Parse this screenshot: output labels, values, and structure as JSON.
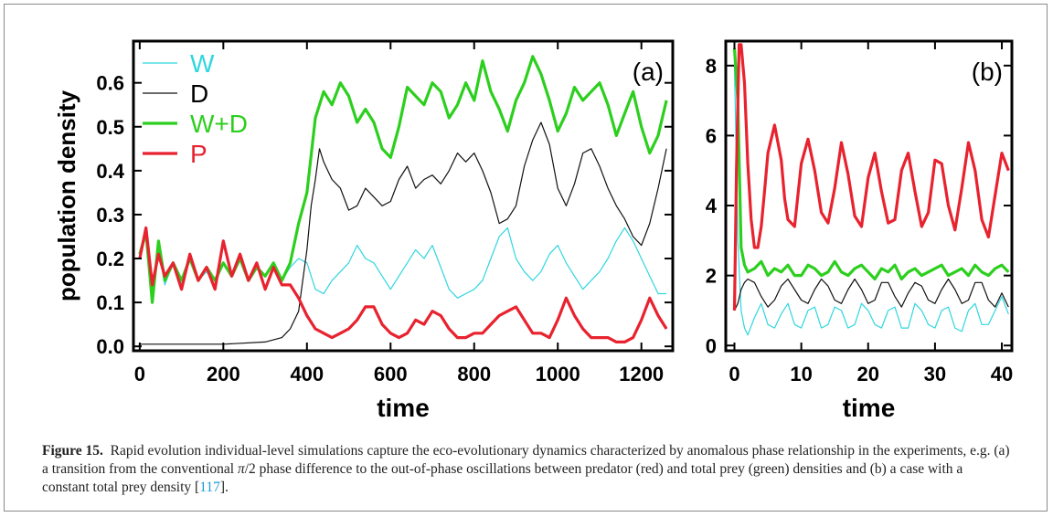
{
  "chart_data": [
    {
      "type": "line",
      "panel_label": "(a)",
      "xlabel": "time",
      "ylabel": "population density",
      "xlim": [
        -15,
        1275
      ],
      "ylim": [
        -0.01,
        0.695
      ],
      "xticks": [
        0,
        200,
        400,
        600,
        800,
        1000,
        1200
      ],
      "yticks": [
        0.0,
        0.1,
        0.2,
        0.3,
        0.4,
        0.5,
        0.6
      ],
      "ytick_labels": [
        "0.0",
        "0.1",
        "0.2",
        "0.3",
        "0.4",
        "0.5",
        "0.6"
      ],
      "legend_position": "top-left",
      "series": [
        {
          "name": "W",
          "color": "#2fd6df",
          "width": 1.2,
          "x": [
            0,
            15,
            30,
            45,
            60,
            80,
            100,
            120,
            140,
            160,
            180,
            200,
            220,
            240,
            260,
            280,
            300,
            320,
            340,
            360,
            380,
            400,
            420,
            440,
            460,
            480,
            500,
            520,
            540,
            560,
            580,
            600,
            620,
            640,
            660,
            680,
            700,
            720,
            740,
            760,
            780,
            800,
            820,
            840,
            860,
            880,
            900,
            920,
            940,
            960,
            980,
            1000,
            1020,
            1040,
            1060,
            1080,
            1100,
            1120,
            1140,
            1160,
            1180,
            1200,
            1220,
            1240,
            1260
          ],
          "y": [
            0.21,
            0.25,
            0.11,
            0.23,
            0.14,
            0.19,
            0.14,
            0.2,
            0.15,
            0.17,
            0.14,
            0.19,
            0.16,
            0.2,
            0.15,
            0.18,
            0.16,
            0.19,
            0.15,
            0.18,
            0.2,
            0.19,
            0.13,
            0.12,
            0.15,
            0.17,
            0.19,
            0.23,
            0.2,
            0.19,
            0.16,
            0.13,
            0.16,
            0.19,
            0.22,
            0.2,
            0.23,
            0.18,
            0.13,
            0.11,
            0.12,
            0.13,
            0.15,
            0.2,
            0.25,
            0.27,
            0.2,
            0.17,
            0.15,
            0.17,
            0.21,
            0.23,
            0.19,
            0.16,
            0.13,
            0.15,
            0.17,
            0.2,
            0.24,
            0.27,
            0.24,
            0.2,
            0.16,
            0.12,
            0.12
          ]
        },
        {
          "name": "D",
          "color": "#111111",
          "width": 1.2,
          "x": [
            0,
            100,
            200,
            300,
            340,
            360,
            380,
            390,
            400,
            410,
            420,
            430,
            440,
            460,
            480,
            500,
            520,
            540,
            560,
            580,
            600,
            620,
            640,
            660,
            680,
            700,
            720,
            740,
            760,
            780,
            800,
            820,
            840,
            860,
            880,
            900,
            920,
            940,
            960,
            980,
            1000,
            1020,
            1040,
            1060,
            1080,
            1100,
            1120,
            1140,
            1160,
            1180,
            1200,
            1220,
            1240,
            1260
          ],
          "y": [
            0.005,
            0.005,
            0.005,
            0.01,
            0.02,
            0.04,
            0.08,
            0.15,
            0.22,
            0.32,
            0.38,
            0.45,
            0.42,
            0.38,
            0.36,
            0.31,
            0.32,
            0.36,
            0.34,
            0.32,
            0.33,
            0.38,
            0.41,
            0.36,
            0.38,
            0.39,
            0.37,
            0.4,
            0.44,
            0.42,
            0.44,
            0.4,
            0.35,
            0.28,
            0.29,
            0.32,
            0.41,
            0.47,
            0.51,
            0.46,
            0.36,
            0.32,
            0.37,
            0.44,
            0.45,
            0.41,
            0.36,
            0.32,
            0.29,
            0.25,
            0.23,
            0.28,
            0.36,
            0.45
          ]
        },
        {
          "name": "W+D",
          "color": "#2ccf1e",
          "width": 3.2,
          "x": [
            0,
            15,
            30,
            45,
            60,
            80,
            100,
            120,
            140,
            160,
            180,
            200,
            220,
            240,
            260,
            280,
            300,
            320,
            340,
            360,
            380,
            400,
            420,
            440,
            460,
            480,
            500,
            520,
            540,
            560,
            580,
            600,
            620,
            640,
            660,
            680,
            700,
            720,
            740,
            760,
            780,
            800,
            820,
            840,
            860,
            880,
            900,
            920,
            940,
            960,
            980,
            1000,
            1020,
            1040,
            1060,
            1080,
            1100,
            1120,
            1140,
            1160,
            1180,
            1200,
            1220,
            1240,
            1260
          ],
          "y": [
            0.21,
            0.26,
            0.1,
            0.24,
            0.15,
            0.19,
            0.15,
            0.2,
            0.15,
            0.18,
            0.15,
            0.19,
            0.16,
            0.2,
            0.15,
            0.18,
            0.16,
            0.19,
            0.15,
            0.19,
            0.28,
            0.35,
            0.52,
            0.58,
            0.55,
            0.6,
            0.57,
            0.51,
            0.54,
            0.51,
            0.45,
            0.43,
            0.5,
            0.59,
            0.57,
            0.55,
            0.6,
            0.58,
            0.52,
            0.55,
            0.6,
            0.56,
            0.65,
            0.58,
            0.54,
            0.49,
            0.56,
            0.6,
            0.66,
            0.62,
            0.56,
            0.49,
            0.53,
            0.59,
            0.56,
            0.58,
            0.6,
            0.55,
            0.48,
            0.53,
            0.58,
            0.5,
            0.44,
            0.48,
            0.56
          ]
        },
        {
          "name": "P",
          "color": "#e8222e",
          "width": 3.2,
          "x": [
            0,
            15,
            30,
            45,
            60,
            80,
            100,
            120,
            140,
            160,
            180,
            200,
            220,
            240,
            260,
            280,
            300,
            320,
            340,
            360,
            380,
            390,
            400,
            420,
            440,
            460,
            480,
            500,
            520,
            540,
            560,
            580,
            600,
            620,
            640,
            660,
            680,
            700,
            720,
            740,
            760,
            780,
            800,
            820,
            840,
            860,
            880,
            900,
            920,
            940,
            960,
            980,
            1000,
            1020,
            1040,
            1060,
            1080,
            1100,
            1120,
            1140,
            1160,
            1180,
            1200,
            1220,
            1240,
            1260
          ],
          "y": [
            0.2,
            0.27,
            0.14,
            0.21,
            0.16,
            0.19,
            0.13,
            0.21,
            0.15,
            0.18,
            0.13,
            0.24,
            0.16,
            0.21,
            0.15,
            0.19,
            0.13,
            0.18,
            0.14,
            0.14,
            0.11,
            0.09,
            0.07,
            0.04,
            0.03,
            0.02,
            0.03,
            0.04,
            0.06,
            0.09,
            0.09,
            0.05,
            0.03,
            0.02,
            0.03,
            0.06,
            0.05,
            0.08,
            0.07,
            0.04,
            0.02,
            0.02,
            0.03,
            0.03,
            0.05,
            0.07,
            0.08,
            0.09,
            0.06,
            0.03,
            0.03,
            0.02,
            0.06,
            0.11,
            0.07,
            0.04,
            0.02,
            0.02,
            0.02,
            0.01,
            0.01,
            0.02,
            0.06,
            0.11,
            0.07,
            0.04
          ]
        }
      ]
    },
    {
      "type": "line",
      "panel_label": "(b)",
      "xlabel": "time",
      "ylabel": "",
      "xlim": [
        -1.3,
        41.5
      ],
      "ylim": [
        -0.15,
        8.7
      ],
      "xticks": [
        0,
        10,
        20,
        30,
        40
      ],
      "yticks": [
        0,
        2,
        4,
        6,
        8
      ],
      "ytick_labels": [
        "0",
        "2",
        "4",
        "6",
        "8"
      ],
      "series": [
        {
          "name": "W",
          "color": "#2fd6df",
          "width": 1.2,
          "x": [
            0,
            0.5,
            1,
            1.5,
            2,
            3,
            4,
            5,
            6,
            7,
            8,
            9,
            10,
            11,
            12,
            13,
            14,
            15,
            16,
            17,
            18,
            19,
            20,
            21,
            22,
            23,
            24,
            25,
            26,
            27,
            28,
            29,
            30,
            31,
            32,
            33,
            34,
            35,
            36,
            37,
            38,
            39,
            40,
            41
          ],
          "y": [
            8,
            3,
            1,
            0.5,
            0.3,
            0.8,
            1.2,
            0.6,
            0.5,
            0.9,
            1.2,
            0.6,
            0.5,
            1.0,
            1.1,
            0.5,
            0.6,
            1.1,
            1.0,
            0.5,
            0.6,
            1.2,
            1.0,
            0.6,
            0.5,
            1.0,
            1.1,
            0.5,
            0.5,
            1.2,
            1.0,
            0.6,
            0.5,
            1.0,
            1.1,
            0.5,
            0.4,
            1.0,
            1.2,
            0.6,
            0.6,
            1.0,
            1.4,
            0.9
          ]
        },
        {
          "name": "D",
          "color": "#111111",
          "width": 1.2,
          "x": [
            0,
            0.5,
            1,
            1.5,
            2,
            3,
            4,
            5,
            6,
            7,
            8,
            9,
            10,
            11,
            12,
            13,
            14,
            15,
            16,
            17,
            18,
            19,
            20,
            21,
            22,
            23,
            24,
            25,
            26,
            27,
            28,
            29,
            30,
            31,
            32,
            33,
            34,
            35,
            36,
            37,
            38,
            39,
            40,
            41
          ],
          "y": [
            1.0,
            1.2,
            1.6,
            1.8,
            1.9,
            1.8,
            1.4,
            1.1,
            1.3,
            1.7,
            1.9,
            1.6,
            1.3,
            1.2,
            1.6,
            1.9,
            1.7,
            1.3,
            1.2,
            1.6,
            1.9,
            1.6,
            1.2,
            1.3,
            1.8,
            1.8,
            1.4,
            1.1,
            1.5,
            1.8,
            1.7,
            1.3,
            1.2,
            1.6,
            1.9,
            1.6,
            1.2,
            1.3,
            1.8,
            1.8,
            1.3,
            1.1,
            1.5,
            1.1
          ]
        },
        {
          "name": "W+D",
          "color": "#2ccf1e",
          "width": 3.2,
          "x": [
            0,
            0.5,
            1,
            1.5,
            2,
            3,
            4,
            5,
            6,
            7,
            8,
            9,
            10,
            11,
            12,
            13,
            14,
            15,
            16,
            17,
            18,
            19,
            20,
            21,
            22,
            23,
            24,
            25,
            26,
            27,
            28,
            29,
            30,
            31,
            32,
            33,
            34,
            35,
            36,
            37,
            38,
            39,
            40,
            41
          ],
          "y": [
            8.5,
            7.0,
            2.8,
            2.3,
            2.1,
            2.2,
            2.4,
            2.0,
            2.2,
            2.1,
            2.3,
            2.0,
            2.0,
            2.3,
            2.2,
            2.0,
            2.1,
            2.4,
            2.1,
            2.0,
            2.2,
            2.3,
            2.1,
            1.9,
            2.2,
            2.1,
            2.3,
            1.9,
            2.1,
            2.2,
            2.0,
            2.1,
            2.2,
            2.3,
            2.0,
            2.1,
            2.2,
            2.0,
            2.3,
            2.1,
            2.0,
            2.2,
            2.3,
            2.1
          ]
        },
        {
          "name": "P",
          "color": "#e8222e",
          "width": 3.2,
          "x": [
            0,
            0.3,
            0.7,
            1,
            1.5,
            2,
            2.5,
            3,
            3.5,
            4,
            4.5,
            5,
            6,
            7,
            7.5,
            8,
            9,
            10,
            11,
            12,
            13,
            14,
            15,
            16,
            17,
            18,
            19,
            20,
            21,
            22,
            23,
            24,
            25,
            26,
            27,
            28,
            29,
            30,
            31,
            32,
            33,
            34,
            35,
            36,
            37,
            38,
            39,
            40,
            41
          ],
          "y": [
            1.0,
            5.0,
            8.6,
            8.6,
            7.5,
            5.2,
            3.6,
            2.8,
            2.8,
            3.4,
            4.4,
            5.5,
            6.3,
            5.3,
            4.2,
            3.6,
            3.4,
            5.2,
            5.9,
            5.0,
            3.8,
            3.5,
            4.5,
            5.8,
            4.9,
            3.7,
            3.4,
            4.8,
            5.5,
            4.4,
            3.5,
            3.6,
            5.0,
            5.5,
            4.4,
            3.4,
            3.8,
            5.3,
            5.2,
            4.0,
            3.3,
            4.5,
            5.8,
            5.0,
            3.6,
            3.1,
            4.3,
            5.5,
            5.0
          ]
        }
      ]
    }
  ],
  "caption": {
    "label": "Figure 15.",
    "text_before_pi": "Rapid evolution individual-level simulations capture the eco-evolutionary dynamics characterized by anomalous phase relationship in the experiments, e.g. (a) a transition from the conventional ",
    "pi": "π",
    "text_after_pi": "/2 phase difference to the out-of-phase oscillations between predator (red) and total prey (green) densities and (b) a case with a constant total prey density [",
    "ref": "117",
    "text_end": "]."
  }
}
